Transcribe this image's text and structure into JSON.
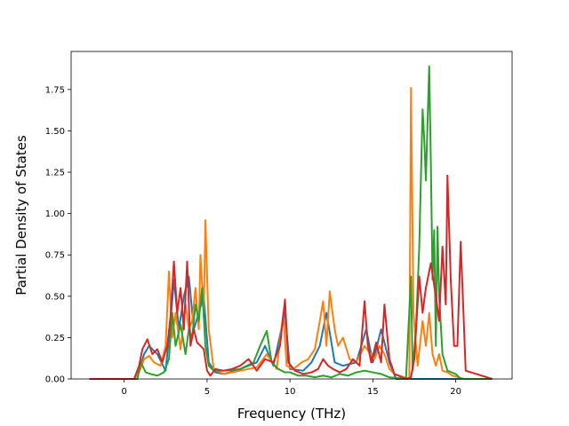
{
  "chart_data": {
    "type": "line",
    "title": "",
    "xlabel": "Frequency (THz)",
    "ylabel": "Partial Density of States",
    "xlim": [
      -3.2,
      23.4
    ],
    "ylim": [
      0,
      1.98
    ],
    "xticks": [
      0,
      5,
      10,
      15,
      20
    ],
    "xtick_labels": [
      "0",
      "5",
      "10",
      "15",
      "20"
    ],
    "yticks": [
      0,
      0.25,
      0.5,
      0.75,
      1.0,
      1.25,
      1.5,
      1.75
    ],
    "ytick_labels": [
      "0.00",
      "0.25",
      "0.50",
      "0.75",
      "1.00",
      "1.25",
      "1.50",
      "1.75"
    ],
    "grid": false,
    "series": [
      {
        "color": "#1f77b4",
        "x": [
          -2.1,
          0.6,
          0.9,
          1.2,
          1.5,
          2.0,
          2.5,
          2.8,
          3.0,
          3.3,
          3.6,
          3.9,
          4.2,
          4.5,
          4.8,
          5.1,
          5.5,
          6.0,
          7.0,
          8.0,
          8.5,
          9.0,
          9.7,
          10.0,
          10.8,
          11.3,
          11.8,
          12.2,
          12.7,
          13.2,
          14.0,
          14.6,
          15.0,
          15.5,
          16.0,
          16.4,
          17.0,
          22.2
        ],
        "values": [
          0,
          0,
          0.05,
          0.15,
          0.2,
          0.15,
          0.05,
          0.35,
          0.6,
          0.3,
          0.5,
          0.62,
          0.3,
          0.4,
          0.5,
          0.1,
          0.04,
          0.03,
          0.06,
          0.1,
          0.2,
          0.08,
          0.4,
          0.06,
          0.05,
          0.1,
          0.2,
          0.4,
          0.1,
          0.08,
          0.1,
          0.3,
          0.1,
          0.3,
          0.1,
          0,
          0,
          0
        ]
      },
      {
        "color": "#ff7f0e",
        "x": [
          -2.1,
          0.6,
          0.9,
          1.2,
          1.5,
          1.8,
          2.2,
          2.5,
          2.7,
          2.9,
          3.1,
          3.4,
          3.7,
          3.9,
          4.1,
          4.3,
          4.5,
          4.6,
          4.8,
          4.9,
          5.1,
          5.4,
          6.0,
          7.0,
          8.0,
          8.6,
          9.2,
          9.6,
          9.8,
          10.2,
          10.7,
          11.1,
          11.5,
          11.8,
          12.0,
          12.2,
          12.4,
          12.7,
          12.9,
          13.2,
          13.6,
          14.0,
          14.5,
          14.8,
          15.1,
          15.4,
          15.7,
          16.0,
          16.3,
          17.2,
          17.3,
          17.45,
          17.7,
          18.0,
          18.2,
          18.4,
          18.6,
          18.8,
          19.0,
          19.2,
          19.5,
          19.8,
          20.2,
          20.5,
          22.2
        ],
        "values": [
          0,
          0,
          0.04,
          0.12,
          0.14,
          0.1,
          0.08,
          0.2,
          0.65,
          0.25,
          0.4,
          0.18,
          0.45,
          0.3,
          0.35,
          0.55,
          0.3,
          0.75,
          0.4,
          0.96,
          0.3,
          0.06,
          0.03,
          0.05,
          0.07,
          0.15,
          0.06,
          0.4,
          0.08,
          0.06,
          0.1,
          0.12,
          0.18,
          0.35,
          0.47,
          0.2,
          0.53,
          0.3,
          0.2,
          0.25,
          0.12,
          0.1,
          0.2,
          0.16,
          0.12,
          0.2,
          0.15,
          0.06,
          0.03,
          0,
          1.76,
          0.4,
          0.08,
          0.35,
          0.2,
          0.4,
          0.15,
          0.08,
          0.15,
          0.05,
          0.04,
          0.02,
          0.01,
          0,
          0
        ]
      },
      {
        "color": "#2ca02c",
        "x": [
          -2.1,
          0.8,
          1.0,
          1.3,
          1.6,
          2.0,
          2.4,
          2.7,
          2.9,
          3.1,
          3.4,
          3.7,
          3.9,
          4.1,
          4.3,
          4.5,
          4.7,
          4.9,
          5.1,
          5.4,
          6.0,
          7.0,
          7.8,
          8.2,
          8.6,
          8.9,
          9.3,
          9.7,
          10.0,
          10.5,
          11.0,
          11.5,
          12.0,
          12.5,
          13.0,
          13.5,
          14.0,
          14.5,
          15.0,
          15.5,
          16.0,
          17.0,
          17.3,
          17.4,
          17.6,
          17.8,
          18.0,
          18.1,
          18.2,
          18.3,
          18.4,
          18.5,
          18.6,
          18.7,
          18.8,
          18.9,
          19.0,
          19.2,
          19.5,
          20.0,
          20.3,
          22.2
        ],
        "values": [
          0,
          0,
          0.1,
          0.04,
          0.03,
          0.02,
          0.04,
          0.12,
          0.4,
          0.2,
          0.33,
          0.15,
          0.3,
          0.25,
          0.45,
          0.35,
          0.55,
          0.2,
          0.08,
          0.05,
          0.05,
          0.06,
          0.1,
          0.2,
          0.29,
          0.1,
          0.06,
          0.04,
          0.04,
          0.02,
          0.02,
          0.01,
          0.02,
          0.01,
          0.03,
          0.02,
          0.04,
          0.05,
          0.04,
          0.03,
          0.01,
          0,
          0.62,
          0.05,
          0.3,
          0.8,
          1.63,
          1.45,
          1.2,
          1.55,
          1.89,
          1.3,
          0.6,
          0.9,
          0.2,
          0.92,
          0.5,
          0.15,
          0.05,
          0.03,
          0,
          0
        ]
      },
      {
        "color": "#d62728",
        "x": [
          -2.1,
          0.6,
          0.9,
          1.1,
          1.4,
          1.7,
          2.0,
          2.3,
          2.6,
          2.8,
          3.0,
          3.2,
          3.4,
          3.6,
          3.8,
          4.0,
          4.2,
          4.4,
          4.6,
          4.8,
          5.0,
          5.2,
          5.5,
          6.0,
          6.5,
          7.0,
          7.5,
          8.0,
          8.5,
          9.0,
          9.4,
          9.7,
          9.9,
          10.3,
          10.8,
          11.3,
          11.7,
          12.0,
          12.3,
          12.6,
          13.0,
          13.4,
          13.8,
          14.2,
          14.5,
          14.7,
          14.9,
          15.2,
          15.5,
          15.7,
          16.0,
          16.3,
          17.0,
          17.3,
          17.5,
          17.8,
          18.0,
          18.2,
          18.5,
          18.8,
          19.0,
          19.2,
          19.4,
          19.5,
          19.7,
          19.9,
          20.1,
          20.3,
          20.6,
          22.2
        ],
        "values": [
          0,
          0,
          0.08,
          0.18,
          0.24,
          0.15,
          0.18,
          0.1,
          0.2,
          0.38,
          0.71,
          0.4,
          0.55,
          0.3,
          0.71,
          0.2,
          0.3,
          0.22,
          0.2,
          0.18,
          0.05,
          0.02,
          0.06,
          0.05,
          0.06,
          0.08,
          0.12,
          0.05,
          0.12,
          0.1,
          0.2,
          0.48,
          0.1,
          0.05,
          0.03,
          0.04,
          0.06,
          0.12,
          0.08,
          0.06,
          0.04,
          0.06,
          0.12,
          0.08,
          0.47,
          0.2,
          0.1,
          0.22,
          0.1,
          0.45,
          0.12,
          0.03,
          0,
          0.01,
          0.12,
          0.62,
          0.4,
          0.55,
          0.7,
          0.5,
          0.35,
          0.8,
          0.45,
          1.23,
          0.6,
          0.2,
          0.2,
          0.83,
          0.05,
          0
        ]
      }
    ]
  }
}
